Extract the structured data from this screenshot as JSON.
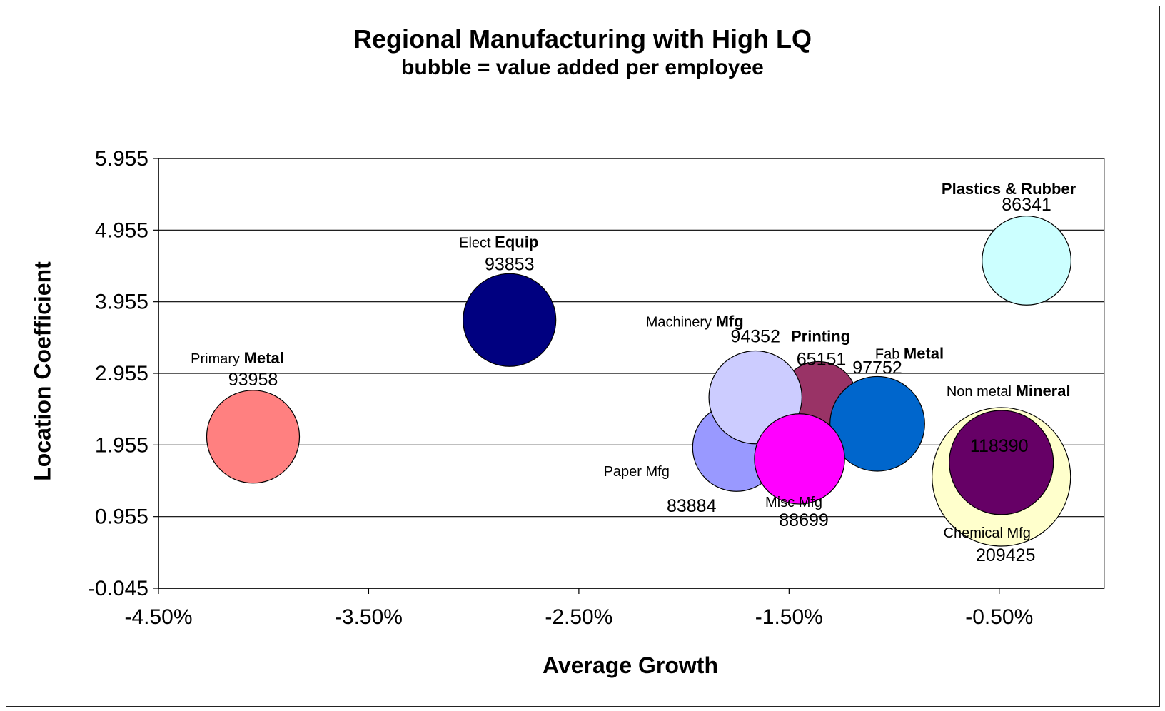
{
  "chart_data": {
    "type": "bubble",
    "title": "Regional Manufacturing with High LQ",
    "subtitle": "bubble = value added per employee",
    "xlabel": "Average Growth",
    "ylabel": "Location Coefficient",
    "xlim": [
      -0.045,
      0.0
    ],
    "ylim": [
      -0.045,
      5.955
    ],
    "x_ticks": [
      "-4.50%",
      "-3.50%",
      "-2.50%",
      "-1.50%",
      "-0.50%"
    ],
    "x_tick_values": [
      -0.045,
      -0.035,
      -0.025,
      -0.015,
      -0.005
    ],
    "y_ticks": [
      "5.955",
      "4.955",
      "3.955",
      "2.955",
      "1.955",
      "0.955",
      "-0.045"
    ],
    "y_tick_values": [
      5.955,
      4.955,
      3.955,
      2.955,
      1.955,
      0.955,
      -0.045
    ],
    "grid": "horizontal",
    "legend": "none",
    "series": [
      {
        "name_light": "Primary ",
        "name_bold": "Metal",
        "value_label": "93958",
        "x": -0.0405,
        "y": 2.07,
        "size": 93958,
        "color": "#ff8080"
      },
      {
        "name_light": "Elect ",
        "name_bold": "Equip",
        "value_label": "93853",
        "x": -0.0283,
        "y": 3.7,
        "size": 93853,
        "color": "#000080"
      },
      {
        "name_light": "Paper Mfg",
        "name_bold": "",
        "value_label": "83884",
        "x": -0.0175,
        "y": 1.92,
        "size": 83884,
        "color": "#9999ff"
      },
      {
        "name_light": "",
        "name_bold": "Printing",
        "value_label": "65151",
        "x": -0.0136,
        "y": 2.58,
        "size": 65151,
        "color": "#993366"
      },
      {
        "name_light": "Machinery ",
        "name_bold": "Mfg",
        "value_label": "94352",
        "x": -0.0166,
        "y": 2.62,
        "size": 94352,
        "color": "#ccccff"
      },
      {
        "name_light": "Misc Mfg",
        "name_bold": "",
        "value_label": "88699",
        "x": -0.0145,
        "y": 1.76,
        "size": 88699,
        "color": "#ff00ff"
      },
      {
        "name_light": "Fab ",
        "name_bold": "Metal",
        "value_label": "97752",
        "x": -0.0108,
        "y": 2.25,
        "size": 97752,
        "color": "#0066cc"
      },
      {
        "name_light": "Chemical Mfg",
        "name_bold": "",
        "value_label": "209425",
        "x": -0.0049,
        "y": 1.51,
        "size": 209425,
        "color": "#ffffcc"
      },
      {
        "name_light": "Non metal ",
        "name_bold": "Mineral",
        "value_label": "118390",
        "x": -0.0049,
        "y": 1.71,
        "size": 118390,
        "color": "#660066"
      },
      {
        "name_light": "",
        "name_bold": "Plastics & Rubber",
        "value_label": "86341",
        "x": -0.0037,
        "y": 4.53,
        "size": 86341,
        "color": "#ccffff"
      }
    ]
  }
}
